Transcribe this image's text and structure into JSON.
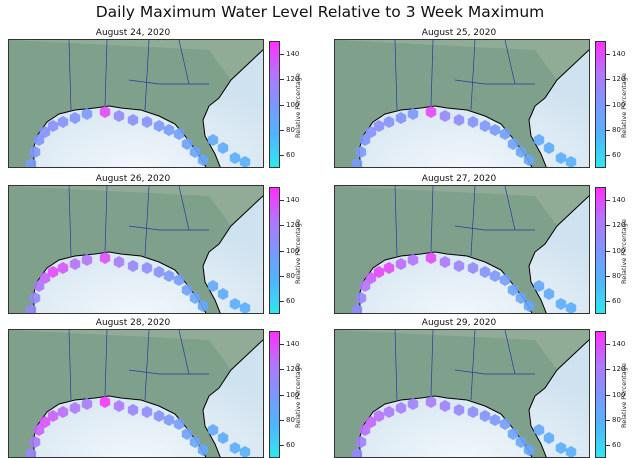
{
  "title": "Daily Maximum Water Level Relative to 3 Week Maximum",
  "colorbar": {
    "label": "Relative Percentage",
    "ticks": [
      "60",
      "80",
      "100",
      "120",
      "140"
    ],
    "range": [
      50,
      150
    ],
    "colors": [
      "#2fe6ee",
      "#4fb6ff",
      "#7c98ff",
      "#b474ff",
      "#ff2fff"
    ]
  },
  "map_colors": {
    "land": "#7fa08a",
    "water": "#cfe2ef",
    "coast": "#000000",
    "state_lines": "#2a3a9a"
  },
  "panels": [
    {
      "date": "August 24, 2020",
      "values": [
        98,
        100,
        102,
        104,
        106,
        104,
        102,
        100,
        140,
        110,
        106,
        104,
        100,
        98,
        94,
        92,
        90,
        88,
        86,
        84,
        82,
        80
      ]
    },
    {
      "date": "August 25, 2020",
      "values": [
        98,
        100,
        102,
        104,
        106,
        104,
        102,
        100,
        142,
        112,
        108,
        104,
        100,
        98,
        94,
        92,
        90,
        88,
        86,
        84,
        82,
        80
      ]
    },
    {
      "date": "August 26, 2020",
      "values": [
        110,
        112,
        122,
        130,
        140,
        136,
        126,
        124,
        138,
        120,
        112,
        108,
        104,
        100,
        96,
        92,
        90,
        88,
        86,
        84,
        82,
        80
      ]
    },
    {
      "date": "August 27, 2020",
      "values": [
        108,
        112,
        124,
        132,
        142,
        140,
        128,
        124,
        140,
        122,
        114,
        110,
        104,
        100,
        96,
        92,
        90,
        88,
        86,
        84,
        82,
        80
      ]
    },
    {
      "date": "August 28, 2020",
      "values": [
        114,
        120,
        132,
        138,
        132,
        128,
        122,
        120,
        146,
        122,
        114,
        110,
        104,
        100,
        96,
        92,
        90,
        88,
        86,
        84,
        82,
        80
      ]
    },
    {
      "date": "August 29, 2020",
      "values": [
        110,
        116,
        128,
        130,
        126,
        122,
        118,
        116,
        120,
        116,
        112,
        108,
        104,
        100,
        96,
        92,
        90,
        88,
        86,
        84,
        82,
        80
      ]
    }
  ]
}
